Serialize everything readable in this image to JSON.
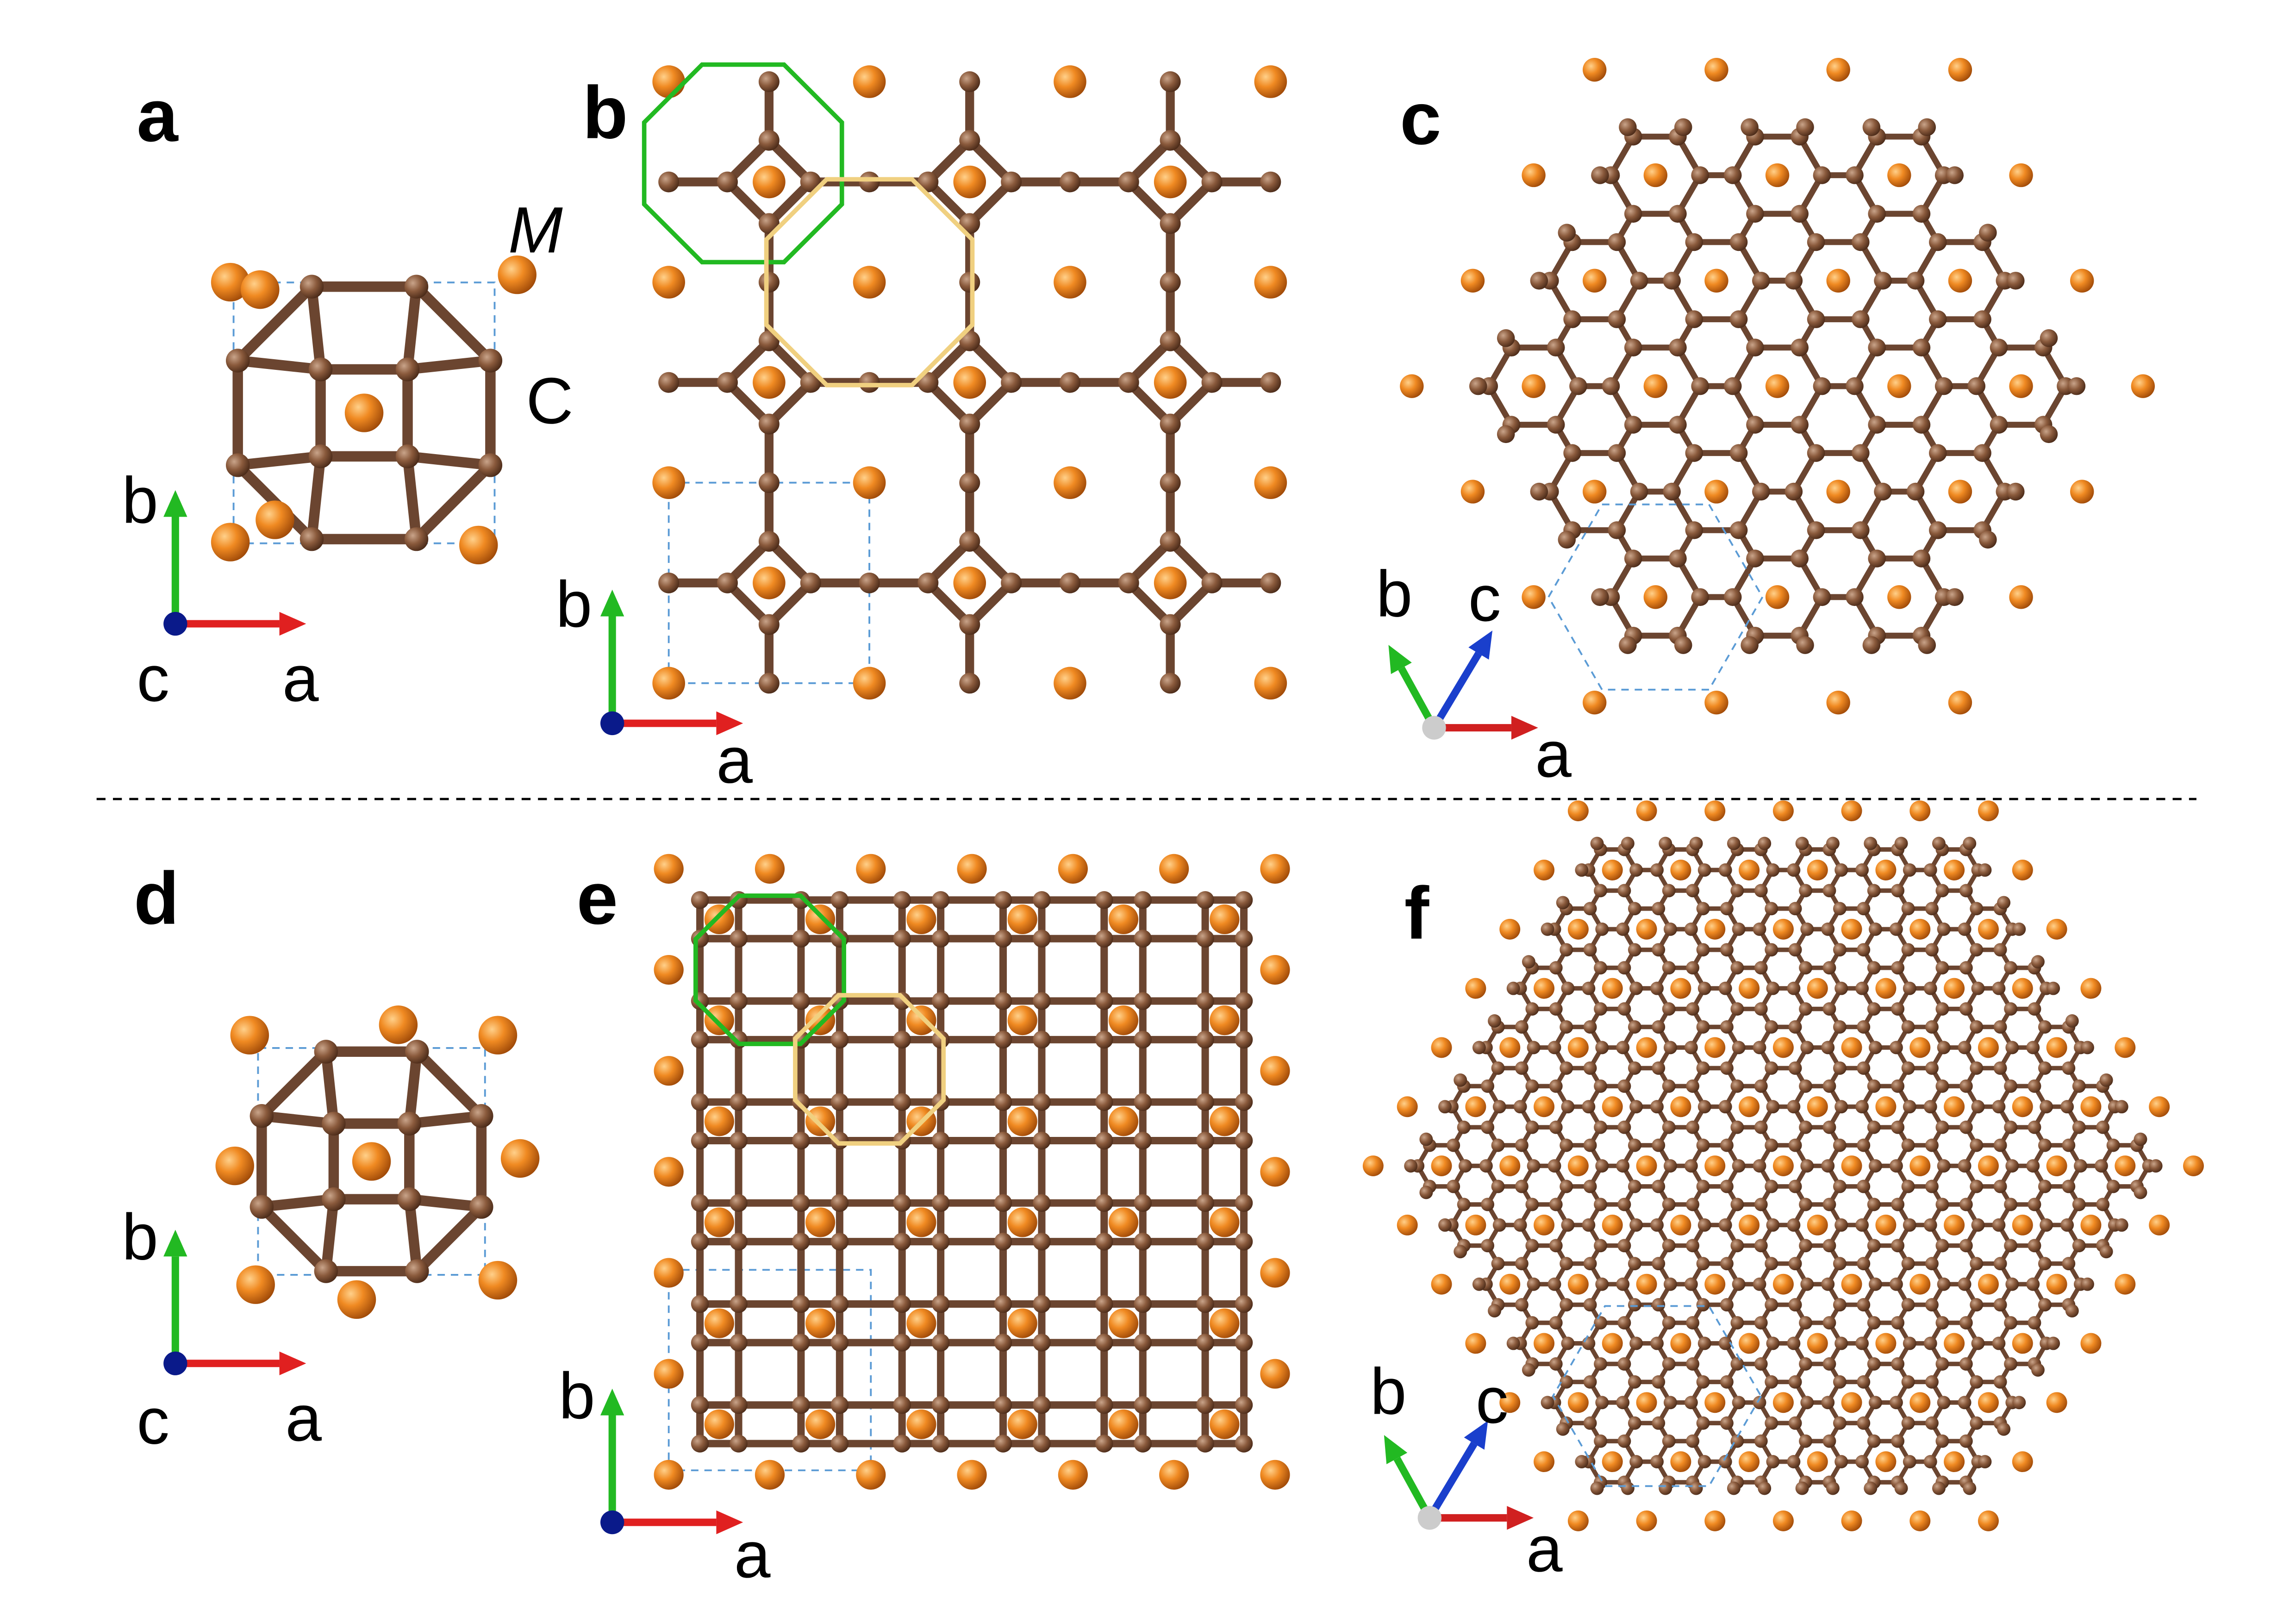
{
  "panels": [
    {
      "label": "a",
      "axes": [
        "b",
        "c",
        "a"
      ],
      "atoms": [
        "M",
        "C"
      ]
    },
    {
      "label": "b",
      "axes": [
        "b",
        "a"
      ]
    },
    {
      "label": "c",
      "axes": [
        "b",
        "c",
        "a"
      ]
    },
    {
      "label": "d",
      "axes": [
        "b",
        "c",
        "a"
      ]
    },
    {
      "label": "e",
      "axes": [
        "b",
        "a"
      ]
    },
    {
      "label": "f",
      "axes": [
        "b",
        "c",
        "a"
      ]
    }
  ]
}
